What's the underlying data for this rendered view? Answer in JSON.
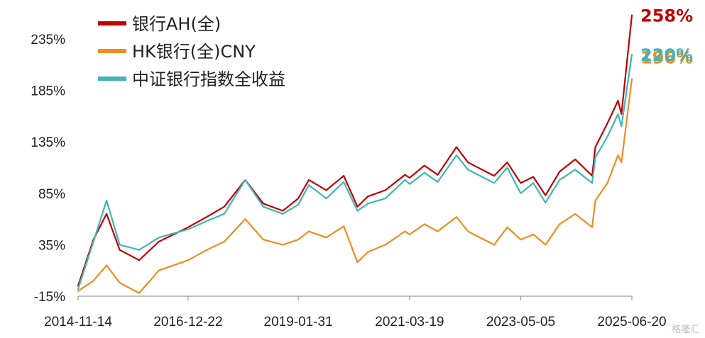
{
  "chart_data": {
    "type": "line",
    "title": "",
    "xlabel": "",
    "ylabel": "",
    "ylim": [
      -15,
      258
    ],
    "yticks": [
      235,
      185,
      135,
      85,
      35,
      -15
    ],
    "ytick_labels": [
      "235%",
      "185%",
      "135%",
      "85%",
      "35%",
      "-15%"
    ],
    "xtick_labels": [
      "2014-11-14",
      "2016-12-22",
      "2019-01-31",
      "2021-03-19",
      "2023-05-05",
      "2025-06-20"
    ],
    "grid": false,
    "legend_position": "top-left",
    "series": [
      {
        "name": "银行AH(全)",
        "color": "#c00000",
        "end_label": "258%",
        "x": [
          "2014-11-14",
          "2015-03-01",
          "2015-06-01",
          "2015-09-01",
          "2016-01-15",
          "2016-06-01",
          "2016-12-22",
          "2017-05-01",
          "2017-09-01",
          "2018-01-25",
          "2018-06-01",
          "2018-10-15",
          "2019-01-31",
          "2019-04-15",
          "2019-08-15",
          "2019-12-15",
          "2020-03-20",
          "2020-06-01",
          "2020-10-01",
          "2021-02-15",
          "2021-03-19",
          "2021-07-01",
          "2021-10-01",
          "2022-02-10",
          "2022-05-01",
          "2022-10-31",
          "2023-01-31",
          "2023-05-05",
          "2023-08-01",
          "2023-10-25",
          "2024-02-01",
          "2024-05-20",
          "2024-09-15",
          "2024-10-08",
          "2024-12-31",
          "2025-03-15",
          "2025-04-08",
          "2025-06-20"
        ],
        "y": [
          -5,
          40,
          65,
          30,
          20,
          38,
          52,
          62,
          72,
          98,
          75,
          68,
          80,
          98,
          88,
          102,
          72,
          82,
          88,
          103,
          100,
          112,
          103,
          130,
          115,
          102,
          115,
          95,
          101,
          83,
          106,
          118,
          102,
          130,
          153,
          175,
          162,
          258
        ]
      },
      {
        "name": "HK银行(全)CNY",
        "color": "#f08c1e",
        "end_label": "196%",
        "x": [
          "2014-11-14",
          "2015-03-01",
          "2015-06-01",
          "2015-09-01",
          "2016-01-15",
          "2016-06-01",
          "2016-12-22",
          "2017-05-01",
          "2017-09-01",
          "2018-01-25",
          "2018-06-01",
          "2018-10-15",
          "2019-01-31",
          "2019-04-15",
          "2019-08-15",
          "2019-12-15",
          "2020-03-20",
          "2020-06-01",
          "2020-10-01",
          "2021-02-15",
          "2021-03-19",
          "2021-07-01",
          "2021-10-01",
          "2022-02-10",
          "2022-05-01",
          "2022-10-31",
          "2023-01-31",
          "2023-05-05",
          "2023-08-01",
          "2023-10-25",
          "2024-02-01",
          "2024-05-20",
          "2024-09-15",
          "2024-10-08",
          "2024-12-31",
          "2025-03-15",
          "2025-04-08",
          "2025-06-20"
        ],
        "y": [
          -10,
          0,
          15,
          -2,
          -12,
          10,
          20,
          30,
          38,
          60,
          40,
          35,
          40,
          48,
          42,
          53,
          18,
          28,
          35,
          48,
          45,
          55,
          48,
          62,
          48,
          35,
          52,
          40,
          45,
          35,
          55,
          65,
          52,
          78,
          95,
          122,
          115,
          196
        ]
      },
      {
        "name": "中证银行指数全收益",
        "color": "#3fb5b9",
        "end_label": "220%",
        "x": [
          "2014-11-14",
          "2015-03-01",
          "2015-06-01",
          "2015-09-01",
          "2016-01-15",
          "2016-06-01",
          "2016-12-22",
          "2017-05-01",
          "2017-09-01",
          "2018-01-25",
          "2018-06-01",
          "2018-10-15",
          "2019-01-31",
          "2019-04-15",
          "2019-08-15",
          "2019-12-15",
          "2020-03-20",
          "2020-06-01",
          "2020-10-01",
          "2021-02-15",
          "2021-03-19",
          "2021-07-01",
          "2021-10-01",
          "2022-02-10",
          "2022-05-01",
          "2022-10-31",
          "2023-01-31",
          "2023-05-05",
          "2023-08-01",
          "2023-10-25",
          "2024-02-01",
          "2024-05-20",
          "2024-09-15",
          "2024-10-08",
          "2024-12-31",
          "2025-03-15",
          "2025-04-08",
          "2025-06-20"
        ],
        "y": [
          -8,
          38,
          78,
          35,
          30,
          42,
          50,
          58,
          65,
          98,
          72,
          65,
          74,
          93,
          80,
          96,
          68,
          75,
          80,
          98,
          94,
          105,
          96,
          122,
          108,
          95,
          110,
          85,
          95,
          76,
          98,
          108,
          95,
          120,
          140,
          162,
          150,
          220
        ]
      }
    ]
  },
  "watermark": "格隆汇"
}
